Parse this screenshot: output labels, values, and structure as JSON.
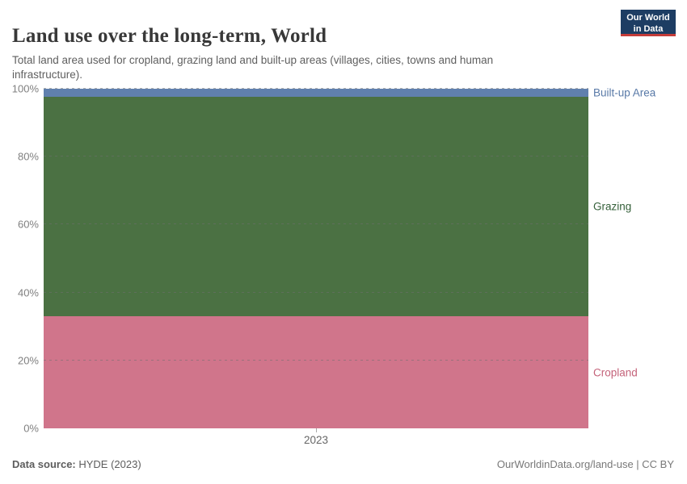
{
  "header": {
    "title": "Land use over the long-term, World",
    "subtitle": "Total land area used for cropland, grazing land and built-up areas (villages, cities, towns and human infrastructure).",
    "logo": {
      "line1": "Our World",
      "line2": "in Data"
    }
  },
  "chart_data": {
    "type": "area",
    "stacked": true,
    "percent_mode": true,
    "title": "Land use over the long-term, World",
    "x": [
      "2023"
    ],
    "categories": [
      "2023"
    ],
    "series": [
      {
        "name": "Cropland",
        "values": [
          33.0
        ],
        "color": "#d0758b",
        "label_color": "#c4637a"
      },
      {
        "name": "Grazing",
        "values": [
          64.6
        ],
        "color": "#4b7143",
        "label_color": "#35603a"
      },
      {
        "name": "Built-up Area",
        "values": [
          2.4
        ],
        "color": "#6080ae",
        "label_color": "#5879a7"
      }
    ],
    "xlabel": "",
    "ylabel": "",
    "ylim": [
      0,
      100
    ],
    "yticks": [
      "0%",
      "20%",
      "40%",
      "60%",
      "80%",
      "100%"
    ],
    "ytick_step_percent": 20,
    "xticks": [
      "2023"
    ],
    "grid": true,
    "grid_style": "dashed",
    "legend_position": "right-edge-labels"
  },
  "footer": {
    "source_label": "Data source:",
    "source_value": " HYDE (2023)",
    "credit": "OurWorldinData.org/land-use | CC BY"
  }
}
